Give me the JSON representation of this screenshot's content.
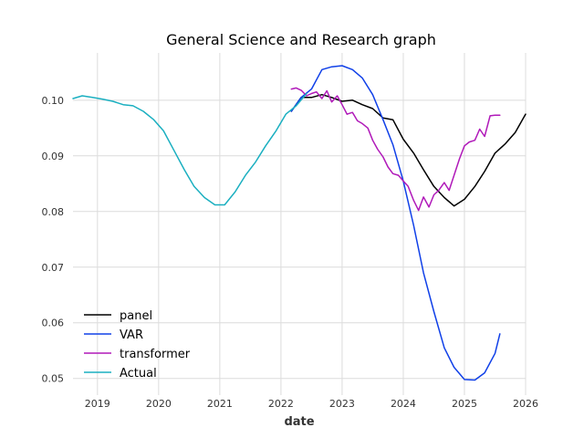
{
  "chart_data": {
    "type": "line",
    "title": "General Science and Research graph",
    "xlabel": "date",
    "ylabel": "",
    "xlim": [
      2018.6,
      2026.0
    ],
    "ylim": [
      0.047,
      0.1085
    ],
    "x_ticks": [
      2019,
      2020,
      2021,
      2022,
      2023,
      2024,
      2025,
      2026
    ],
    "x_tick_labels": [
      "2019",
      "2020",
      "2021",
      "2022",
      "2023",
      "2024",
      "2025",
      "2026"
    ],
    "y_ticks": [
      0.05,
      0.06,
      0.07,
      0.08,
      0.09,
      0.1
    ],
    "y_tick_labels": [
      "0.05",
      "0.06",
      "0.07",
      "0.08",
      "0.09",
      "0.10"
    ],
    "grid": true,
    "legend_position": "bottom-left",
    "series": [
      {
        "name": "panel",
        "color": "#000000",
        "x": [
          2022.17,
          2022.33,
          2022.5,
          2022.67,
          2022.83,
          2023.0,
          2023.17,
          2023.33,
          2023.5,
          2023.67,
          2023.83,
          2024.0,
          2024.17,
          2024.33,
          2024.5,
          2024.67,
          2024.83,
          2025.0,
          2025.17,
          2025.33,
          2025.5,
          2025.67,
          2025.83,
          2026.0
        ],
        "values": [
          0.098,
          0.1005,
          0.1005,
          0.101,
          0.1005,
          0.0998,
          0.1,
          0.0992,
          0.0985,
          0.0968,
          0.0965,
          0.093,
          0.0905,
          0.0875,
          0.0845,
          0.0825,
          0.081,
          0.0822,
          0.0845,
          0.0872,
          0.0905,
          0.0922,
          0.0942,
          0.0975
        ]
      },
      {
        "name": "VAR",
        "color": "#1040e8",
        "x": [
          2022.17,
          2022.33,
          2022.5,
          2022.67,
          2022.83,
          2023.0,
          2023.17,
          2023.33,
          2023.5,
          2023.67,
          2023.83,
          2024.0,
          2024.17,
          2024.33,
          2024.5,
          2024.67,
          2024.83,
          2025.0,
          2025.17,
          2025.33,
          2025.5,
          2025.58
        ],
        "values": [
          0.098,
          0.1005,
          0.102,
          0.1055,
          0.106,
          0.1062,
          0.1055,
          0.104,
          0.101,
          0.0965,
          0.092,
          0.0855,
          0.0775,
          0.069,
          0.062,
          0.0555,
          0.052,
          0.0498,
          0.0497,
          0.051,
          0.0545,
          0.058
        ]
      },
      {
        "name": "transformer",
        "color": "#b019b9",
        "x": [
          2022.17,
          2022.25,
          2022.33,
          2022.42,
          2022.5,
          2022.58,
          2022.67,
          2022.75,
          2022.83,
          2022.92,
          2023.0,
          2023.08,
          2023.17,
          2023.25,
          2023.33,
          2023.42,
          2023.5,
          2023.58,
          2023.67,
          2023.75,
          2023.83,
          2023.92,
          2024.0,
          2024.08,
          2024.17,
          2024.25,
          2024.33,
          2024.42,
          2024.5,
          2024.58,
          2024.67,
          2024.75,
          2024.83,
          2024.92,
          2025.0,
          2025.08,
          2025.17,
          2025.25,
          2025.33,
          2025.42,
          2025.5,
          2025.58
        ],
        "values": [
          0.102,
          0.1022,
          0.1018,
          0.1008,
          0.1012,
          0.1015,
          0.1003,
          0.1017,
          0.0997,
          0.1008,
          0.0992,
          0.0975,
          0.0978,
          0.0963,
          0.0958,
          0.095,
          0.0928,
          0.0912,
          0.0898,
          0.088,
          0.0868,
          0.0865,
          0.0855,
          0.0845,
          0.082,
          0.0802,
          0.0826,
          0.0808,
          0.083,
          0.0838,
          0.0852,
          0.0838,
          0.0865,
          0.0895,
          0.0918,
          0.0925,
          0.0928,
          0.0948,
          0.0935,
          0.0972,
          0.0973,
          0.0973
        ]
      },
      {
        "name": "Actual",
        "color": "#1aafc0",
        "x": [
          2018.6,
          2018.75,
          2018.92,
          2019.08,
          2019.25,
          2019.42,
          2019.58,
          2019.75,
          2019.92,
          2020.08,
          2020.25,
          2020.42,
          2020.58,
          2020.75,
          2020.92,
          2021.08,
          2021.25,
          2021.42,
          2021.58,
          2021.75,
          2021.92,
          2022.08,
          2022.25,
          2022.42
        ],
        "values": [
          0.1003,
          0.1008,
          0.1005,
          0.1002,
          0.0998,
          0.0992,
          0.099,
          0.098,
          0.0965,
          0.0945,
          0.091,
          0.0875,
          0.0845,
          0.0825,
          0.0812,
          0.0812,
          0.0835,
          0.0865,
          0.0888,
          0.0918,
          0.0945,
          0.0975,
          0.099,
          0.1012
        ]
      }
    ]
  }
}
